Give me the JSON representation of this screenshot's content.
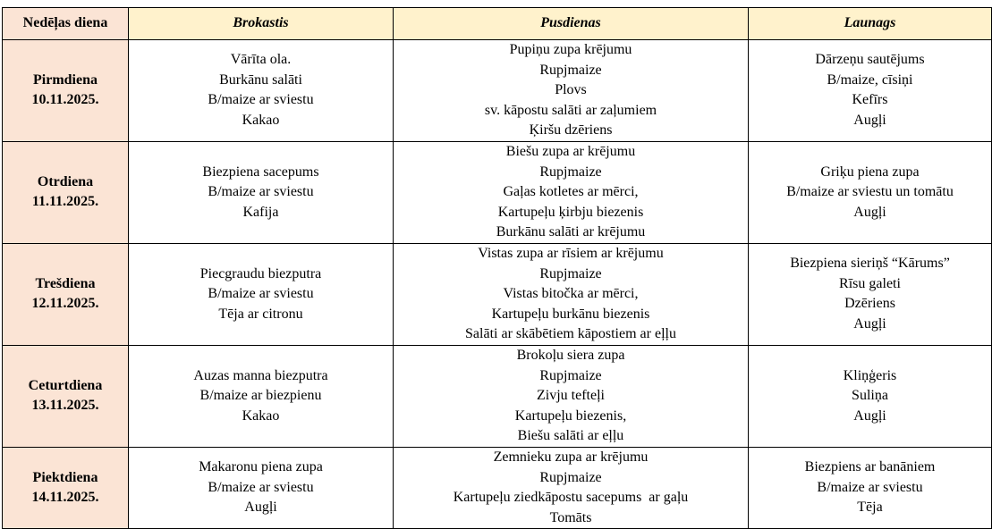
{
  "headers": [
    "Nedēļas diena",
    "Brokastis",
    "Pusdienas",
    "Launags"
  ],
  "colors": {
    "day_column_bg": "#fbe4d5",
    "header_bg": "#fff2cc"
  },
  "rows": [
    {
      "day": "Pirmdiena",
      "date": "10.11.2025.",
      "breakfast": [
        "Vārīta ola.",
        "Burkānu salāti",
        "B/maize ar sviestu",
        "Kakao"
      ],
      "lunch": [
        "Pupiņu zupa krējumu",
        "Rupjmaize",
        "Plovs",
        "sv. kāpostu salāti ar zaļumiem",
        "Ķiršu dzēriens"
      ],
      "snack": [
        "Dārzeņu sautējums",
        "B/maize, cīsiņi",
        "Kefīrs",
        "Augļi"
      ]
    },
    {
      "day": "Otrdiena",
      "date": "11.11.2025.",
      "breakfast": [
        "Biezpiena sacepums",
        "B/maize ar sviestu",
        "Kafija"
      ],
      "lunch": [
        "Biešu zupa ar krējumu",
        "Rupjmaize",
        "Gaļas kotletes ar mērci,",
        "Kartupeļu ķirbju biezenis",
        "Burkānu salāti ar krējumu"
      ],
      "snack": [
        "Griķu piena zupa",
        "B/maize ar sviestu un tomātu",
        "Augļi"
      ]
    },
    {
      "day": "Trešdiena",
      "date": "12.11.2025.",
      "breakfast": [
        "Piecgraudu biezputra",
        "B/maize ar sviestu",
        "Tēja ar citronu"
      ],
      "lunch": [
        "Vistas zupa ar rīsiem ar krējumu",
        "Rupjmaize",
        "Vistas bitočka ar mērci,",
        "Kartupeļu burkānu biezenis",
        "Salāti ar skābētiem kāpostiem ar eļļu"
      ],
      "snack": [
        "Biezpiena sieriņš “Kārums”",
        "Rīsu galeti",
        "Dzēriens",
        "Augļi"
      ]
    },
    {
      "day": "Ceturtdiena",
      "date": "13.11.2025.",
      "breakfast": [
        "Auzas manna biezputra",
        "B/maize ar biezpienu",
        "Kakao"
      ],
      "lunch": [
        "Brokoļu siera zupa",
        "Rupjmaize",
        "Zivju tefteļi",
        "Kartupeļu biezenis,",
        "Biešu salāti ar eļļu"
      ],
      "snack": [
        "Kliņģeris",
        "Suliņa",
        "Augļi"
      ]
    },
    {
      "day": "Piektdiena",
      "date": "14.11.2025.",
      "breakfast": [
        "Makaronu piena zupa",
        "B/maize ar sviestu",
        "Augļi"
      ],
      "lunch": [
        "Zemnieku zupa ar krējumu",
        "Rupjmaize",
        "Kartupeļu ziedkāpostu sacepums  ar gaļu",
        "Tomāts"
      ],
      "snack": [
        "Biezpiens ar banāniem",
        "B/maize ar sviestu",
        "Tēja"
      ]
    }
  ]
}
